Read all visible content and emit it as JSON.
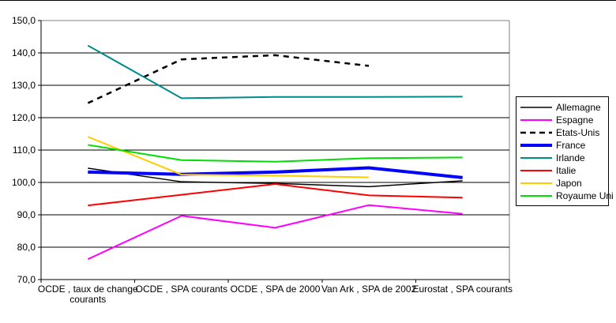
{
  "chart_data": {
    "type": "line",
    "title": "",
    "xlabel": "",
    "ylabel": "",
    "categories": [
      "OCDE , taux de change courants",
      "OCDE , SPA courants",
      "OCDE , SPA de 2000",
      "Van Ark , SPA de 2002",
      "Eurostat , SPA courants"
    ],
    "series": [
      {
        "name": "Allemagne",
        "color": "#000000",
        "width": 1.5,
        "dash": "",
        "values": [
          104.4,
          100.2,
          99.7,
          98.7,
          100.5
        ]
      },
      {
        "name": "Espagne",
        "color": "#FF00FF",
        "width": 2,
        "dash": "",
        "values": [
          76.3,
          89.7,
          86.0,
          93.0,
          90.3
        ]
      },
      {
        "name": "Etats-Unis",
        "color": "#000000",
        "width": 2.5,
        "dash": "7 6",
        "values": [
          124.5,
          138.0,
          139.3,
          136.0,
          null
        ]
      },
      {
        "name": "France",
        "color": "#0000FF",
        "width": 4,
        "dash": "",
        "values": [
          103.2,
          102.5,
          103.2,
          104.5,
          101.5
        ]
      },
      {
        "name": "Irlande",
        "color": "#008B8B",
        "width": 2,
        "dash": "",
        "values": [
          142.3,
          126.0,
          126.4,
          126.4,
          126.5
        ]
      },
      {
        "name": "Italie",
        "color": "#FF0000",
        "width": 2,
        "dash": "",
        "values": [
          92.9,
          96.2,
          99.5,
          96.0,
          95.3
        ]
      },
      {
        "name": "Japon",
        "color": "#FFCC00",
        "width": 2,
        "dash": "",
        "values": [
          114.1,
          102.4,
          102.1,
          101.6,
          null
        ]
      },
      {
        "name": "Royaume Uni",
        "color": "#00DF00",
        "width": 2,
        "dash": "",
        "values": [
          111.6,
          106.9,
          106.4,
          107.5,
          107.7
        ]
      }
    ],
    "ylim": [
      70,
      150
    ],
    "ytick_step": 10,
    "ytick_labels": [
      "70,0",
      "80,0",
      "90,0",
      "100,0",
      "110,0",
      "120,0",
      "130,0",
      "140,0",
      "150,0"
    ],
    "grid": true,
    "legend_position": "right"
  },
  "colors": {
    "background": "#FFFFFF",
    "axis": "#000000",
    "gridline": "#000000",
    "plot_border": "#808080",
    "top_edge": "#000000"
  }
}
